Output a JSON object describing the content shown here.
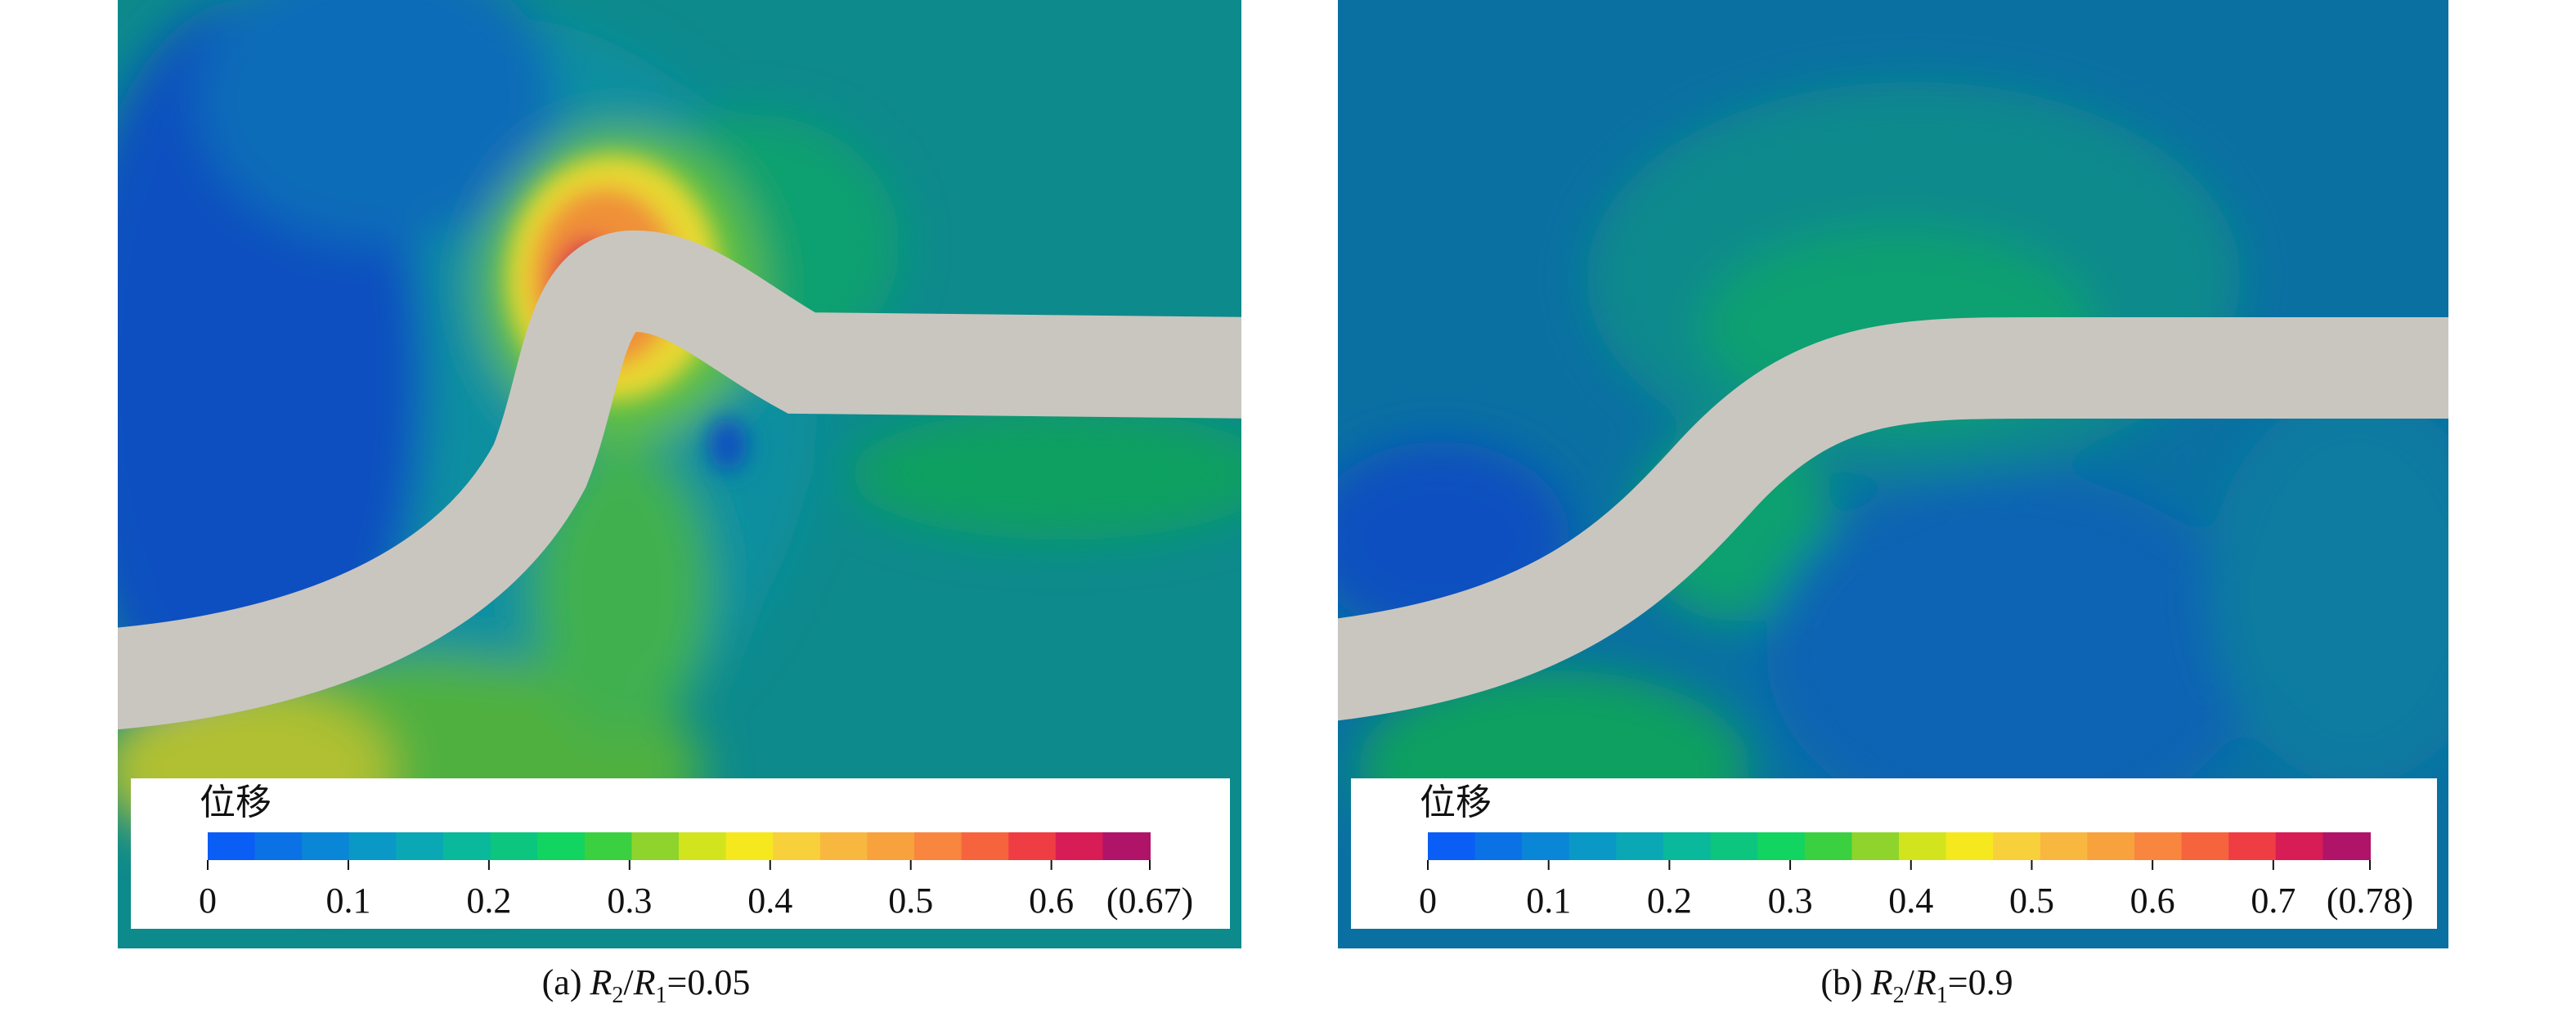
{
  "panels": [
    {
      "caption": {
        "label": "(a)",
        "var1": "R",
        "sub1": "2",
        "sep": "/",
        "var2": "R",
        "sub2": "1",
        "value": "=0.05"
      },
      "colorbar": {
        "title": "位移",
        "ticks": [
          0,
          0.1,
          0.2,
          0.3,
          0.4,
          0.5,
          0.6
        ],
        "max": {
          "value": 0.67,
          "label": "(0.67)"
        },
        "colors": [
          "#0a5ef5",
          "#0b72e6",
          "#0a86d6",
          "#0a98c6",
          "#0aa8b4",
          "#0ab89c",
          "#0cc680",
          "#12d460",
          "#3ad040",
          "#8ed42c",
          "#d2e41e",
          "#f6e81e",
          "#f8d03c",
          "#f8b840",
          "#f8a23e",
          "#f8863e",
          "#f6643e",
          "#ee3e44",
          "#d81c56",
          "#b01468"
        ]
      }
    },
    {
      "caption": {
        "label": "(b)",
        "var1": "R",
        "sub1": "2",
        "sep": "/",
        "var2": "R",
        "sub2": "1",
        "value": "=0.9"
      },
      "colorbar": {
        "title": "位移",
        "ticks": [
          0,
          0.1,
          0.2,
          0.3,
          0.4,
          0.5,
          0.6,
          0.7
        ],
        "max": {
          "value": 0.78,
          "label": "(0.78)"
        },
        "colors": [
          "#0a5ef5",
          "#0b72e6",
          "#0a86d6",
          "#0a98c6",
          "#0aa8b4",
          "#0ab89c",
          "#0cc680",
          "#12d460",
          "#3ad040",
          "#8ed42c",
          "#d2e41e",
          "#f6e81e",
          "#f8d03c",
          "#f8b840",
          "#f8a23e",
          "#f8863e",
          "#f6643e",
          "#ee3e44",
          "#d81c56",
          "#b01468"
        ]
      }
    }
  ]
}
